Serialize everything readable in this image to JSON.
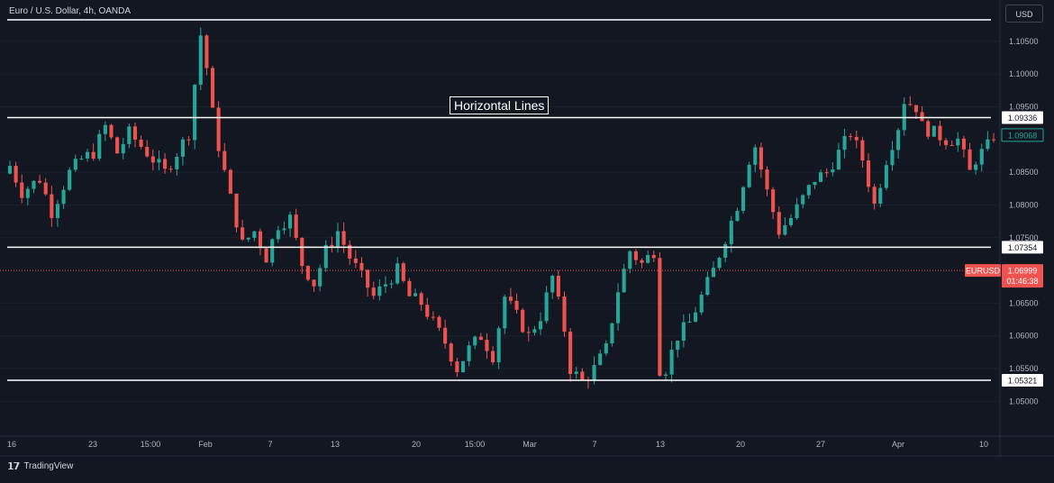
{
  "header": {
    "symbol_title": "Euro / U.S. Dollar, 4h, OANDA",
    "currency": "USD"
  },
  "footer": {
    "brand": "TradingView"
  },
  "chart_data": {
    "type": "candlestick",
    "symbol": "EURUSD",
    "interval": "4h",
    "ylim": [
      1.0455,
      1.1105
    ],
    "y_ticks": [
      "1.10500",
      "1.10000",
      "1.09500",
      "1.08500",
      "1.08000",
      "1.07500",
      "1.06500",
      "1.06000",
      "1.05500",
      "1.05000"
    ],
    "y_tick_values": [
      1.105,
      1.1,
      1.095,
      1.085,
      1.08,
      1.075,
      1.065,
      1.06,
      1.055,
      1.05
    ],
    "x_ticks": [
      "16",
      "23",
      "15:00",
      "Feb",
      "7",
      "13",
      "20",
      "15:00",
      "Mar",
      "7",
      "13",
      "20",
      "27",
      "Apr",
      "10"
    ],
    "annotation": "Horizontal Lines",
    "horizontal_lines": [
      {
        "value": 1.1083,
        "label": ""
      },
      {
        "value": 1.09336,
        "label": "1.09336"
      },
      {
        "value": 1.07354,
        "label": "1.07354"
      },
      {
        "value": 1.05321,
        "label": "1.05321"
      }
    ],
    "last_price": {
      "value": 1.06999,
      "label": "1.06999",
      "symbol": "EURUSD",
      "countdown": "01:46:38"
    },
    "previous_close": {
      "value": 1.09068,
      "label": "1.09068"
    },
    "close_path": [
      [
        0,
        1.086
      ],
      [
        2,
        1.082
      ],
      [
        5,
        1.084
      ],
      [
        7,
        1.079
      ],
      [
        10,
        1.085
      ],
      [
        12,
        1.087
      ],
      [
        14,
        1.088
      ],
      [
        16,
        1.092
      ],
      [
        18,
        1.088
      ],
      [
        20,
        1.091
      ],
      [
        22,
        1.089
      ],
      [
        24,
        1.087
      ],
      [
        26,
        1.085
      ],
      [
        28,
        1.088
      ],
      [
        30,
        1.091
      ],
      [
        32,
        1.106
      ],
      [
        33,
        1.101
      ],
      [
        34,
        1.094
      ],
      [
        35,
        1.089
      ],
      [
        37,
        1.081
      ],
      [
        39,
        1.074
      ],
      [
        41,
        1.076
      ],
      [
        43,
        1.072
      ],
      [
        45,
        1.077
      ],
      [
        47,
        1.078
      ],
      [
        49,
        1.071
      ],
      [
        51,
        1.068
      ],
      [
        53,
        1.073
      ],
      [
        55,
        1.076
      ],
      [
        57,
        1.072
      ],
      [
        59,
        1.069
      ],
      [
        61,
        1.066
      ],
      [
        63,
        1.068
      ],
      [
        65,
        1.07
      ],
      [
        67,
        1.066
      ],
      [
        69,
        1.065
      ],
      [
        71,
        1.062
      ],
      [
        73,
        1.059
      ],
      [
        75,
        1.055
      ],
      [
        77,
        1.058
      ],
      [
        79,
        1.06
      ],
      [
        81,
        1.057
      ],
      [
        83,
        1.066
      ],
      [
        85,
        1.063
      ],
      [
        87,
        1.06
      ],
      [
        89,
        1.063
      ],
      [
        91,
        1.069
      ],
      [
        93,
        1.061
      ],
      [
        94,
        1.055
      ],
      [
        96,
        1.053
      ],
      [
        98,
        1.055
      ],
      [
        100,
        1.058
      ],
      [
        102,
        1.067
      ],
      [
        104,
        1.073
      ],
      [
        106,
        1.071
      ],
      [
        108,
        1.073
      ],
      [
        109,
        1.055
      ],
      [
        110,
        1.055
      ],
      [
        112,
        1.06
      ],
      [
        114,
        1.062
      ],
      [
        116,
        1.066
      ],
      [
        118,
        1.07
      ],
      [
        120,
        1.075
      ],
      [
        122,
        1.08
      ],
      [
        124,
        1.087
      ],
      [
        125,
        1.089
      ],
      [
        127,
        1.082
      ],
      [
        129,
        1.076
      ],
      [
        131,
        1.078
      ],
      [
        133,
        1.081
      ],
      [
        135,
        1.084
      ],
      [
        137,
        1.085
      ],
      [
        139,
        1.088
      ],
      [
        141,
        1.091
      ],
      [
        143,
        1.087
      ],
      [
        145,
        1.08
      ],
      [
        147,
        1.087
      ],
      [
        149,
        1.092
      ],
      [
        150,
        1.096
      ],
      [
        152,
        1.095
      ],
      [
        153,
        1.092
      ],
      [
        155,
        1.091
      ],
      [
        157,
        1.09
      ],
      [
        159,
        1.09
      ],
      [
        161,
        1.085
      ],
      [
        162,
        1.087
      ],
      [
        164,
        1.089
      ],
      [
        165,
        1.09068
      ]
    ]
  }
}
